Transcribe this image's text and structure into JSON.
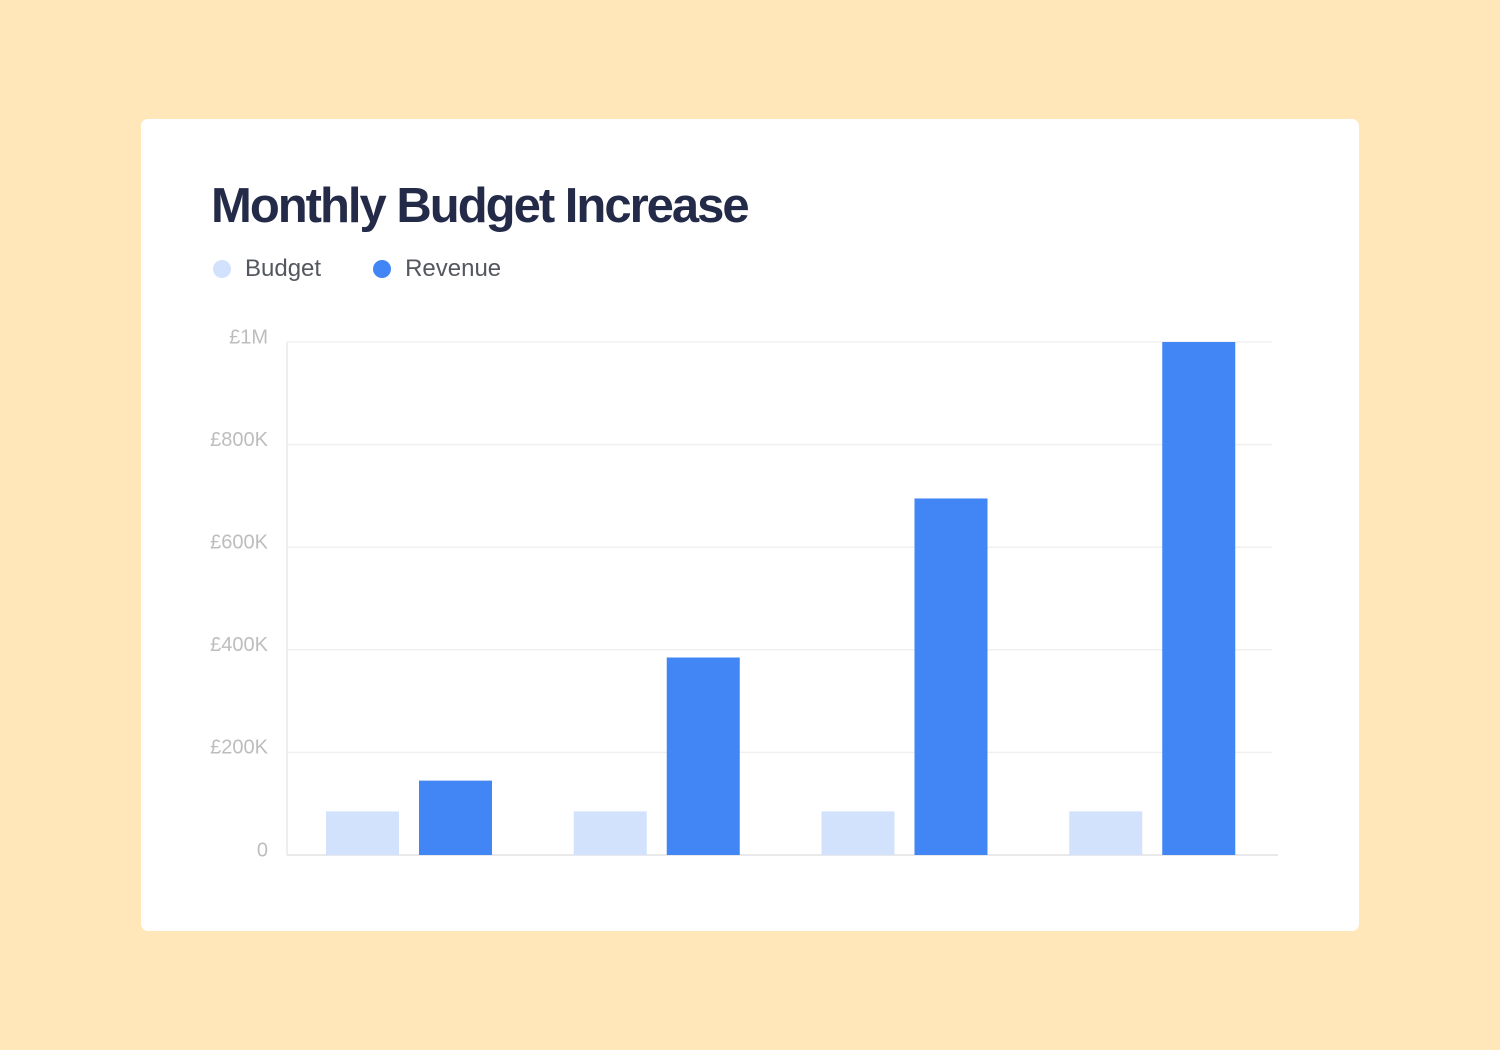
{
  "chart_data": {
    "type": "bar",
    "title": "Monthly Budget Increase",
    "categories": [
      "",
      "",
      "",
      ""
    ],
    "series": [
      {
        "name": "Budget",
        "values": [
          85000,
          85000,
          85000,
          85000
        ],
        "color": "#D2E2FC"
      },
      {
        "name": "Revenue",
        "values": [
          145000,
          385000,
          695000,
          1000000
        ],
        "color": "#4285F4"
      }
    ],
    "ylim": [
      0,
      1000000
    ],
    "yticks": [
      {
        "value": 0,
        "label": "0"
      },
      {
        "value": 200000,
        "label": "£200K"
      },
      {
        "value": 400000,
        "label": "£400K"
      },
      {
        "value": 600000,
        "label": "£600K"
      },
      {
        "value": 800000,
        "label": "£800K"
      },
      {
        "value": 1000000,
        "label": "£1M"
      }
    ],
    "xlabel": "",
    "ylabel": "",
    "grid": true,
    "legend": "top-left"
  }
}
